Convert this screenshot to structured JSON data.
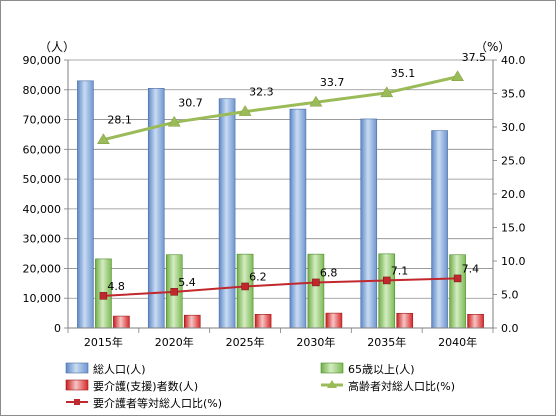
{
  "chart_data": {
    "type": "bar",
    "categories": [
      "2015年",
      "2020年",
      "2025年",
      "2030年",
      "2035年",
      "2040年"
    ],
    "left_unit": "（人）",
    "right_unit": "（%）",
    "left_ticks": [
      "0",
      "10,000",
      "20,000",
      "30,000",
      "40,000",
      "50,000",
      "60,000",
      "70,000",
      "80,000",
      "90,000"
    ],
    "right_ticks": [
      "0.0",
      "5.0",
      "10.0",
      "15.0",
      "20.0",
      "25.0",
      "30.0",
      "35.0",
      "40.0"
    ],
    "ylim_left": [
      0,
      90000
    ],
    "ylim_right": [
      0,
      40
    ],
    "series": [
      {
        "name": "総人口(人)",
        "kind": "bar",
        "axis": "left",
        "color": "#7ea6dc",
        "values": [
          83000,
          80500,
          77000,
          73500,
          70200,
          66300
        ]
      },
      {
        "name": "65歳以上(人)",
        "kind": "bar",
        "axis": "left",
        "color": "#8ec66b",
        "values": [
          23200,
          24600,
          24800,
          24800,
          24900,
          24600
        ]
      },
      {
        "name": "要介護(支援)者数(人)",
        "kind": "bar",
        "axis": "left",
        "color": "#e03030",
        "values": [
          4000,
          4300,
          4600,
          5000,
          4950,
          4600
        ]
      },
      {
        "name": "高齢者対総人口比(%)",
        "kind": "line",
        "axis": "right",
        "color": "#9bbb59",
        "marker": "triangle",
        "values": [
          28.1,
          30.7,
          32.3,
          33.7,
          35.1,
          37.5
        ],
        "labels": [
          "28.1",
          "30.7",
          "32.3",
          "33.7",
          "35.1",
          "37.5"
        ]
      },
      {
        "name": "要介護者等対総人口比(%)",
        "kind": "line",
        "axis": "right",
        "color": "#c0282d",
        "marker": "square",
        "values": [
          4.8,
          5.4,
          6.2,
          6.8,
          7.1,
          7.4
        ],
        "labels": [
          "4.8",
          "5.4",
          "6.2",
          "6.8",
          "7.1",
          "7.4"
        ]
      }
    ],
    "legend": [
      {
        "label": "総人口(人)",
        "series": 0
      },
      {
        "label": "65歳以上(人)",
        "series": 1
      },
      {
        "label": "要介護(支援)者数(人)",
        "series": 2
      },
      {
        "label": "高齢者対総人口比(%)",
        "series": 3
      },
      {
        "label": "要介護者等対総人口比(%)",
        "series": 4
      }
    ],
    "legend_position": "bottom",
    "grid": true
  }
}
